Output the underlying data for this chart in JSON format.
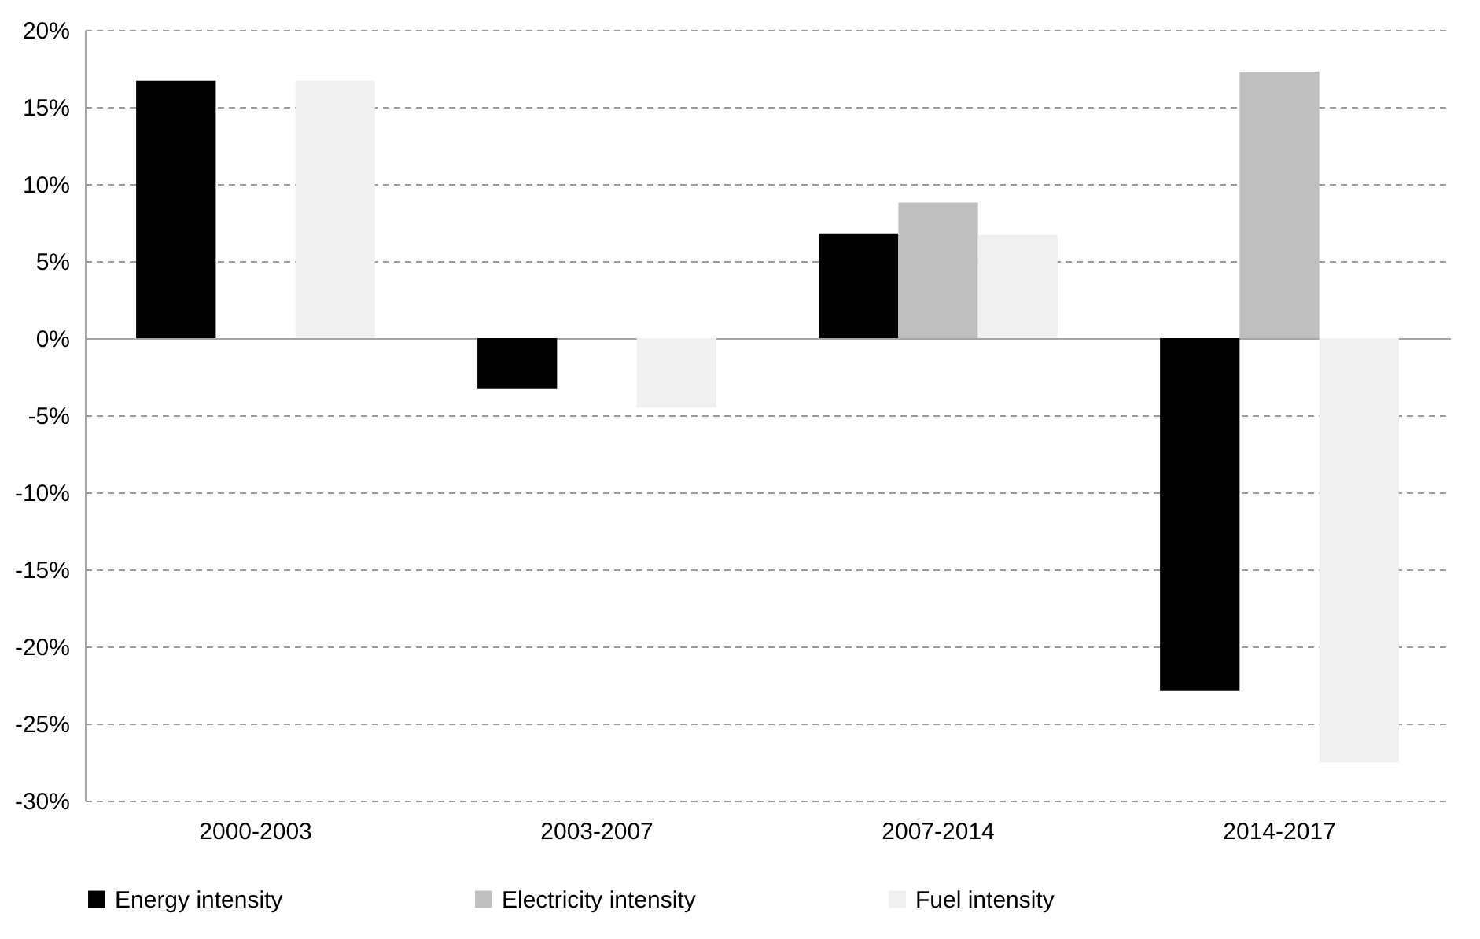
{
  "chart_data": {
    "type": "bar",
    "categories": [
      "2000-2003",
      "2003-2007",
      "2007-2014",
      "2014-2017"
    ],
    "series": [
      {
        "name": "Energy intensity",
        "color": "#000000",
        "values": [
          16.7,
          -3.3,
          6.8,
          -22.9
        ]
      },
      {
        "name": "Electricity intensity",
        "color": "#bfbfbf",
        "values": [
          null,
          null,
          8.8,
          17.3
        ]
      },
      {
        "name": "Fuel intensity",
        "color": "#f0f0f0",
        "values": [
          16.7,
          -4.5,
          6.7,
          -27.5
        ]
      }
    ],
    "ylim": [
      -30,
      20
    ],
    "yticks": [
      {
        "value": -30,
        "label": "-30%"
      },
      {
        "value": -25,
        "label": "-25%"
      },
      {
        "value": -20,
        "label": "-20%"
      },
      {
        "value": -15,
        "label": "-15%"
      },
      {
        "value": -10,
        "label": "-10%"
      },
      {
        "value": -5,
        "label": "-5%"
      },
      {
        "value": 0,
        "label": "0%"
      },
      {
        "value": 5,
        "label": "5%"
      },
      {
        "value": 10,
        "label": "10%"
      },
      {
        "value": 15,
        "label": "15%"
      },
      {
        "value": 20,
        "label": "20%"
      }
    ],
    "grid": "y",
    "legend": "bottom"
  }
}
